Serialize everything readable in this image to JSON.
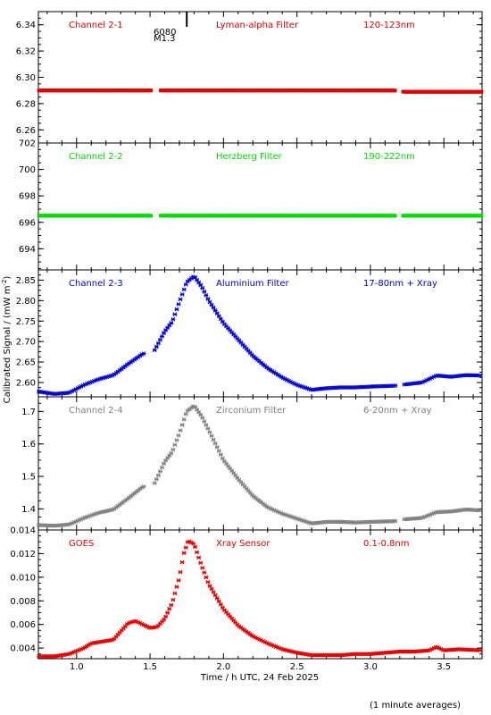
{
  "xlabel": "Time / h UTC, 24 Feb 2025",
  "ylabel": "Calibrated Signal / (mW m",
  "ylabel_sup": "-2",
  "ylabel_end": ")",
  "footnote": "(1 minute averages)",
  "flare_marker": {
    "line1": "6080",
    "line2": "M1.3",
    "time": 1.75
  },
  "chart_data": [
    {
      "type": "scatter",
      "name_text": "Channel 2-1",
      "filter": "Lyman-alpha Filter",
      "band": "120-123nm",
      "color": "#e00000",
      "xlim": [
        0.74,
        3.76
      ],
      "ylim": [
        6.25,
        6.35
      ],
      "yticks": [
        6.26,
        6.28,
        6.3,
        6.32,
        6.34
      ],
      "ytick_labels": [
        "6.26",
        "6.28",
        "6.30",
        "6.32",
        "6.34"
      ],
      "gaps": [
        [
          1.51,
          1.57
        ],
        [
          3.17,
          3.22
        ]
      ],
      "series": [
        {
          "x": [
            0.74,
            1.0,
            1.25,
            1.5,
            1.58,
            2.0,
            2.5,
            3.0,
            3.16,
            3.23,
            3.5,
            3.76
          ],
          "y": [
            6.29,
            6.29,
            6.29,
            6.29,
            6.29,
            6.29,
            6.29,
            6.29,
            6.29,
            6.289,
            6.289,
            6.289
          ]
        }
      ]
    },
    {
      "type": "scatter",
      "name_text": "Channel 2-2",
      "filter": "Herzberg Filter",
      "band": "190-222nm",
      "color": "#00dd00",
      "xlim": [
        0.74,
        3.76
      ],
      "ylim": [
        692.4,
        702.0
      ],
      "yticks": [
        694,
        696,
        698,
        700,
        702
      ],
      "ytick_labels": [
        "694",
        "696",
        "698",
        "700",
        "702"
      ],
      "gaps": [
        [
          1.51,
          1.57
        ],
        [
          3.17,
          3.22
        ]
      ],
      "series": [
        {
          "x": [
            0.74,
            1.0,
            1.25,
            1.5,
            1.58,
            2.0,
            2.5,
            3.0,
            3.16,
            3.23,
            3.5,
            3.76
          ],
          "y": [
            696.5,
            696.5,
            696.5,
            696.5,
            696.5,
            696.5,
            696.5,
            696.5,
            696.5,
            696.5,
            696.5,
            696.5
          ]
        }
      ]
    },
    {
      "type": "scatter",
      "name_text": "Channel 2-3",
      "filter": "Aluminium Filter",
      "band": "17-80nm + Xray",
      "color": "#0000cc",
      "xlim": [
        0.74,
        3.76
      ],
      "ylim": [
        2.565,
        2.875
      ],
      "yticks": [
        2.6,
        2.65,
        2.7,
        2.75,
        2.8,
        2.85
      ],
      "ytick_labels": [
        "2.60",
        "2.65",
        "2.70",
        "2.75",
        "2.80",
        "2.85"
      ],
      "gaps": [
        [
          1.46,
          1.53
        ],
        [
          3.17,
          3.22
        ]
      ],
      "series": [
        {
          "x": [
            0.74,
            0.85,
            0.95,
            1.05,
            1.15,
            1.25,
            1.35,
            1.45,
            1.53,
            1.6,
            1.65,
            1.7,
            1.75,
            1.8,
            1.85,
            1.9,
            2.0,
            2.1,
            2.2,
            2.3,
            2.4,
            2.5,
            2.6,
            2.7,
            2.8,
            2.9,
            3.0,
            3.16,
            3.23,
            3.35,
            3.45,
            3.55,
            3.65,
            3.76
          ],
          "y": [
            2.578,
            2.572,
            2.575,
            2.594,
            2.608,
            2.618,
            2.645,
            2.67,
            2.678,
            2.725,
            2.748,
            2.797,
            2.845,
            2.86,
            2.835,
            2.8,
            2.745,
            2.705,
            2.665,
            2.635,
            2.612,
            2.594,
            2.582,
            2.586,
            2.588,
            2.588,
            2.59,
            2.592,
            2.595,
            2.6,
            2.617,
            2.614,
            2.618,
            2.617
          ]
        }
      ]
    },
    {
      "type": "scatter",
      "name_text": "Channel 2-4",
      "filter": "Zirconium Filter",
      "band": "6-20nm + Xray",
      "color": "#808080",
      "xlim": [
        0.74,
        3.76
      ],
      "ylim": [
        1.335,
        1.745
      ],
      "yticks": [
        1.4,
        1.5,
        1.6,
        1.7
      ],
      "ytick_labels": [
        "1.4",
        "1.5",
        "1.6",
        "1.7"
      ],
      "gaps": [
        [
          1.46,
          1.53
        ],
        [
          3.17,
          3.22
        ]
      ],
      "series": [
        {
          "x": [
            0.74,
            0.85,
            0.95,
            1.05,
            1.15,
            1.25,
            1.35,
            1.45,
            1.53,
            1.6,
            1.65,
            1.7,
            1.75,
            1.8,
            1.85,
            1.9,
            2.0,
            2.1,
            2.2,
            2.3,
            2.4,
            2.5,
            2.6,
            2.7,
            2.8,
            2.9,
            3.0,
            3.16,
            3.23,
            3.35,
            3.45,
            3.55,
            3.65,
            3.76
          ],
          "y": [
            1.35,
            1.348,
            1.352,
            1.372,
            1.388,
            1.398,
            1.432,
            1.468,
            1.478,
            1.545,
            1.575,
            1.633,
            1.7,
            1.718,
            1.686,
            1.642,
            1.55,
            1.492,
            1.44,
            1.405,
            1.385,
            1.37,
            1.355,
            1.36,
            1.36,
            1.358,
            1.36,
            1.362,
            1.368,
            1.372,
            1.39,
            1.392,
            1.398,
            1.395
          ]
        }
      ]
    },
    {
      "type": "scatter",
      "name_text": "GOES",
      "filter": "Xray Sensor",
      "band": "0.1-0.8nm",
      "color": "#e00000",
      "xlim": [
        0.74,
        3.76
      ],
      "ylim": [
        0.0031,
        0.014
      ],
      "yticks": [
        0.004,
        0.006,
        0.008,
        0.01,
        0.012,
        0.014
      ],
      "ytick_labels": [
        "0.004",
        "0.006",
        "0.008",
        "0.010",
        "0.012",
        "0.014"
      ],
      "gaps": [],
      "series": [
        {
          "x": [
            0.74,
            0.85,
            0.95,
            1.05,
            1.1,
            1.15,
            1.25,
            1.3,
            1.35,
            1.4,
            1.45,
            1.5,
            1.55,
            1.6,
            1.65,
            1.7,
            1.73,
            1.76,
            1.8,
            1.85,
            1.9,
            2.0,
            2.1,
            2.2,
            2.3,
            2.4,
            2.5,
            2.6,
            2.7,
            2.8,
            2.9,
            3.0,
            3.1,
            3.2,
            3.3,
            3.4,
            3.45,
            3.5,
            3.6,
            3.76
          ],
          "y": [
            0.0033,
            0.0033,
            0.0035,
            0.004,
            0.0044,
            0.0045,
            0.0047,
            0.0054,
            0.0061,
            0.0063,
            0.006,
            0.0057,
            0.0058,
            0.0065,
            0.0078,
            0.01,
            0.012,
            0.0131,
            0.0128,
            0.011,
            0.0094,
            0.0073,
            0.0059,
            0.005,
            0.0044,
            0.0039,
            0.0036,
            0.0034,
            0.0034,
            0.0034,
            0.0035,
            0.0035,
            0.0036,
            0.0037,
            0.0037,
            0.0038,
            0.0041,
            0.0038,
            0.0039,
            0.0038
          ]
        }
      ]
    }
  ],
  "shared_x": {
    "xticks": [
      1.0,
      1.5,
      2.0,
      2.5,
      3.0,
      3.5
    ],
    "xtick_labels": [
      "1.0",
      "1.5",
      "2.0",
      "2.5",
      "3.0",
      "3.5"
    ],
    "minor_step": 0.1
  }
}
